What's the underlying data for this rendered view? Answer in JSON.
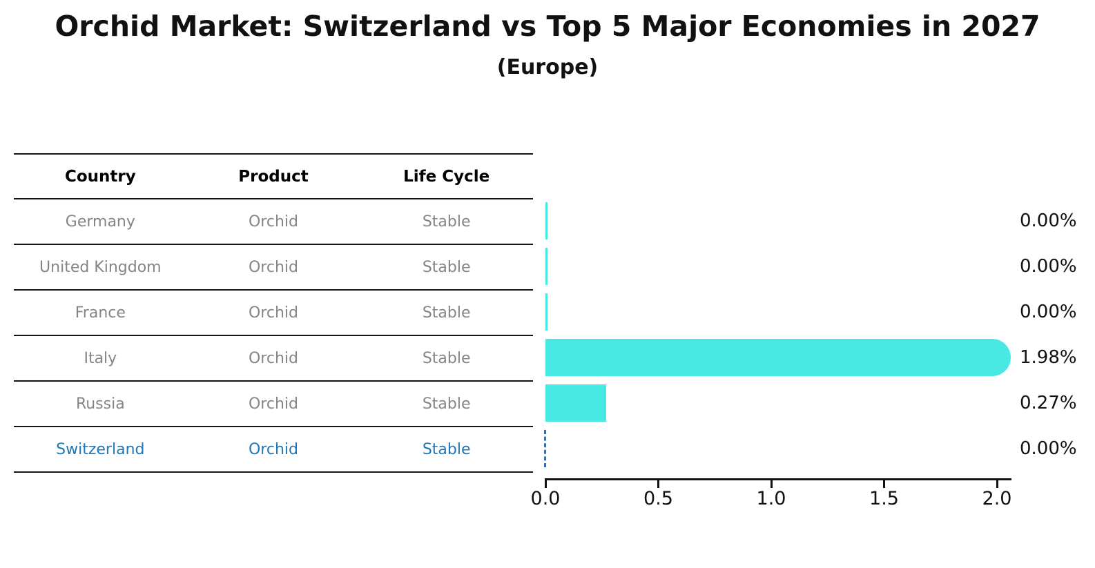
{
  "title": "Orchid Market: Switzerland vs Top 5 Major Economies in 2027",
  "subtitle": "(Europe)",
  "table": {
    "headers": [
      "Country",
      "Product",
      "Life Cycle"
    ],
    "rows": [
      {
        "country": "Germany",
        "product": "Orchid",
        "life_cycle": "Stable",
        "highlight": false
      },
      {
        "country": "United Kingdom",
        "product": "Orchid",
        "life_cycle": "Stable",
        "highlight": false
      },
      {
        "country": "France",
        "product": "Orchid",
        "life_cycle": "Stable",
        "highlight": false
      },
      {
        "country": "Italy",
        "product": "Orchid",
        "life_cycle": "Stable",
        "highlight": false
      },
      {
        "country": "Russia",
        "product": "Orchid",
        "life_cycle": "Stable",
        "highlight": false
      },
      {
        "country": "Switzerland",
        "product": "Orchid",
        "life_cycle": "Stable",
        "highlight": true
      }
    ]
  },
  "chart_data": {
    "type": "bar",
    "orientation": "horizontal",
    "title": "Orchid Market: Switzerland vs Top 5 Major Economies in 2027",
    "subtitle": "(Europe)",
    "categories": [
      "Germany",
      "United Kingdom",
      "France",
      "Italy",
      "Russia",
      "Switzerland"
    ],
    "values": [
      0.0,
      0.0,
      0.0,
      1.98,
      0.27,
      0.0
    ],
    "value_labels": [
      "0.00%",
      "0.00%",
      "0.00%",
      "1.98%",
      "0.27%",
      "0.00%"
    ],
    "xlabel": "",
    "ylabel": "",
    "xlim": [
      0,
      2.07
    ],
    "x_tick_labels": [
      "0.0",
      "0.5",
      "1.0",
      "1.5",
      "2.0"
    ],
    "grid": false,
    "legend": false,
    "bar_color": "#48e8e3",
    "highlight_row": "Switzerland",
    "highlight_marker": "dashed-zero-line",
    "highlight_marker_color": "#3a6ea5",
    "highlight_text_color": "#1f77b4",
    "row_text_color": "#858585"
  }
}
